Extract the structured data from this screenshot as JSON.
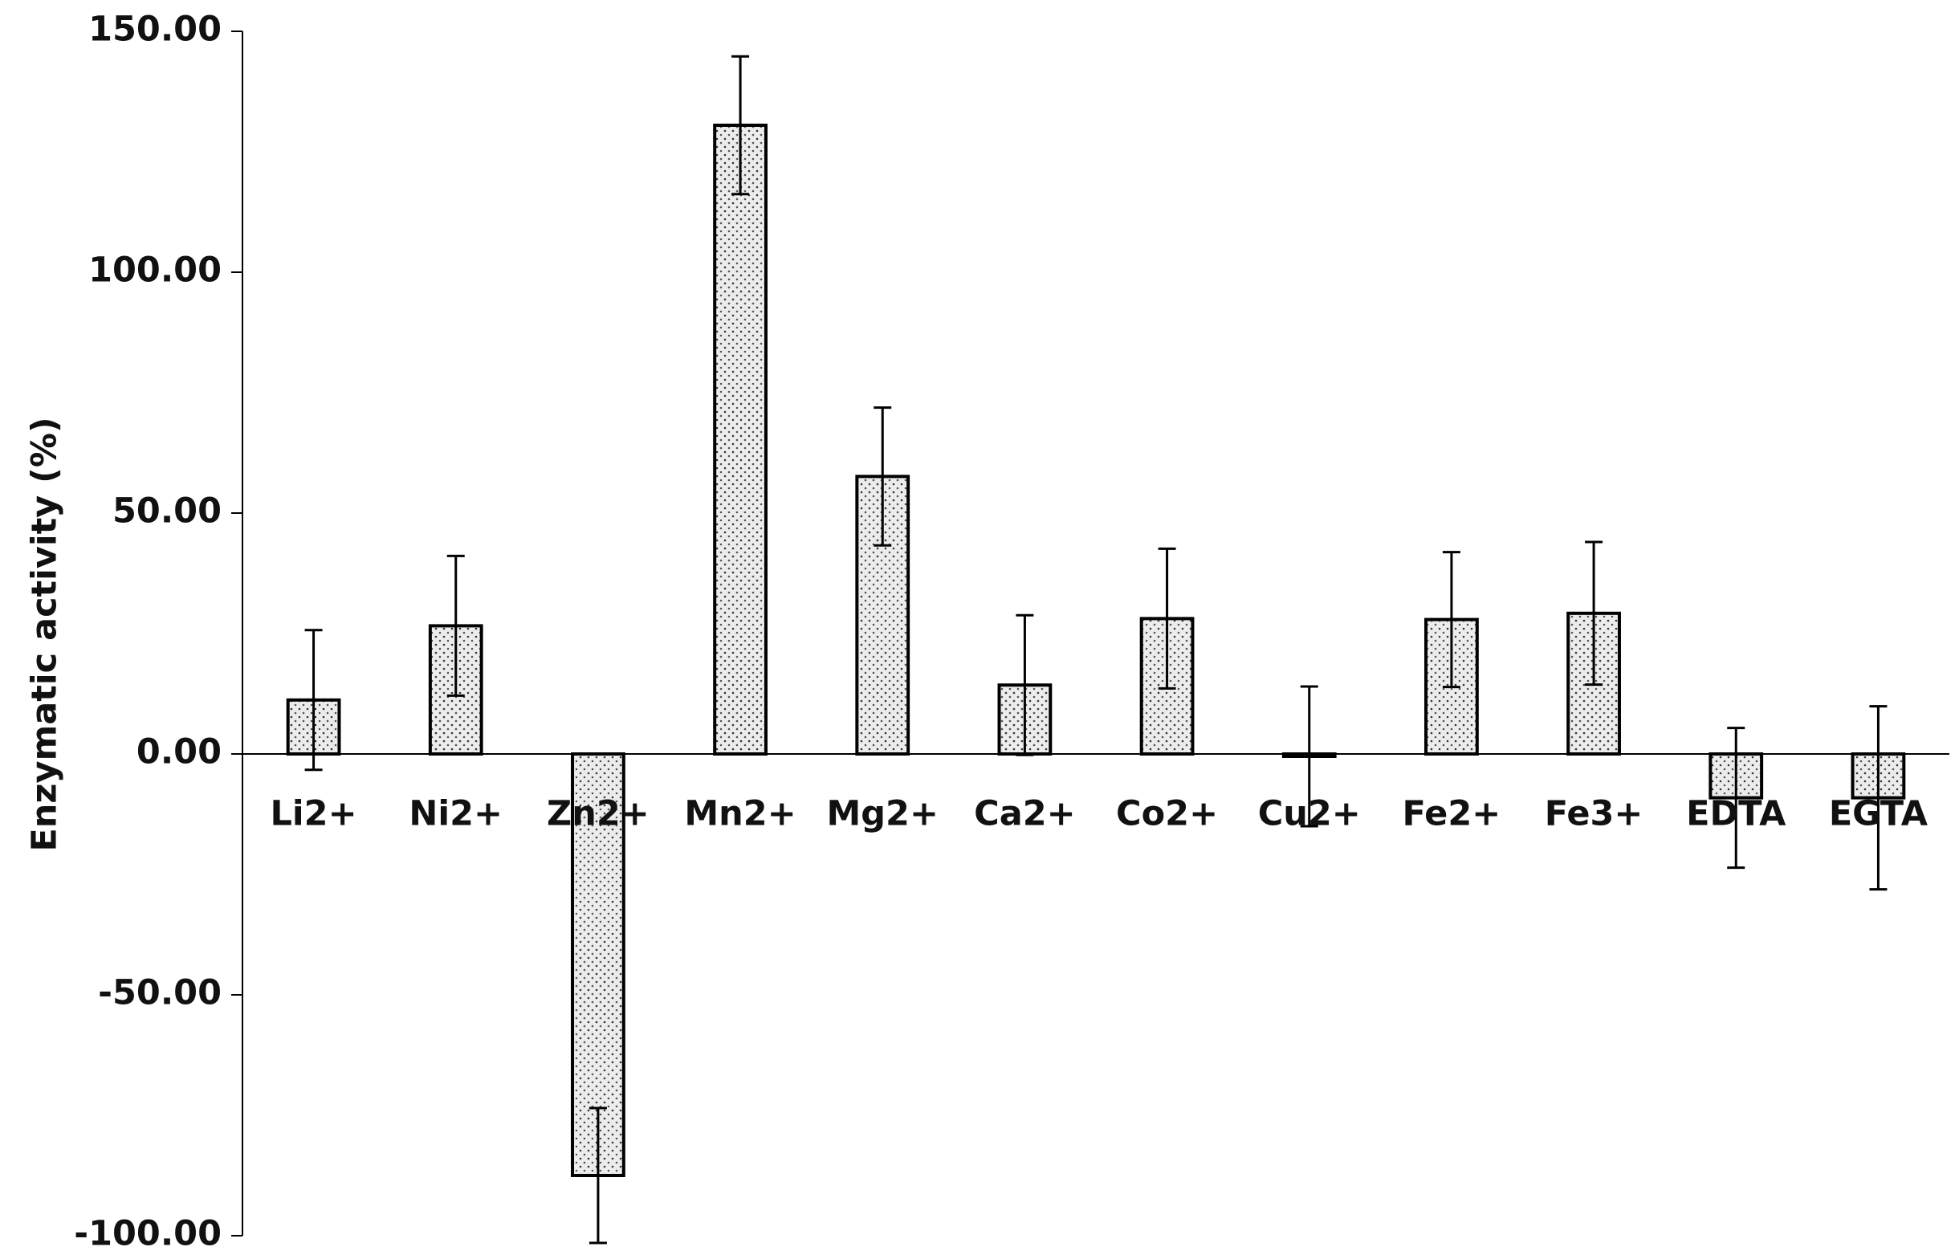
{
  "chart_data": {
    "type": "bar",
    "y_label": "Enzymatic activity (%)",
    "categories": [
      "Li2+",
      "Ni2+",
      "Zn2+",
      "Mn2+",
      "Mg2+",
      "Ca2+",
      "Co2+",
      "Cu2+",
      "Fe2+",
      "Fe3+",
      "EDTA",
      "EGTA"
    ],
    "values": [
      11.2,
      26.6,
      -87.5,
      130.5,
      57.6,
      14.3,
      28.1,
      -0.5,
      27.9,
      29.2,
      -9.1,
      -9.1
    ],
    "errors": [
      14.5,
      14.5,
      14,
      14.3,
      14.3,
      14.5,
      14.5,
      14.5,
      14,
      14.8,
      14.5,
      19
    ],
    "color": "#e8e8e8",
    "edge_color": "#000000",
    "ylim": [
      -100,
      150
    ],
    "yticks": [
      {
        "value": -100,
        "label": "-100.00"
      },
      {
        "value": -50,
        "label": "-50.00"
      },
      {
        "value": 0,
        "label": "0.00"
      },
      {
        "value": 50,
        "label": "50.00"
      },
      {
        "value": 100,
        "label": "100.00"
      },
      {
        "value": 150,
        "label": "150.00"
      }
    ],
    "grid": false
  }
}
